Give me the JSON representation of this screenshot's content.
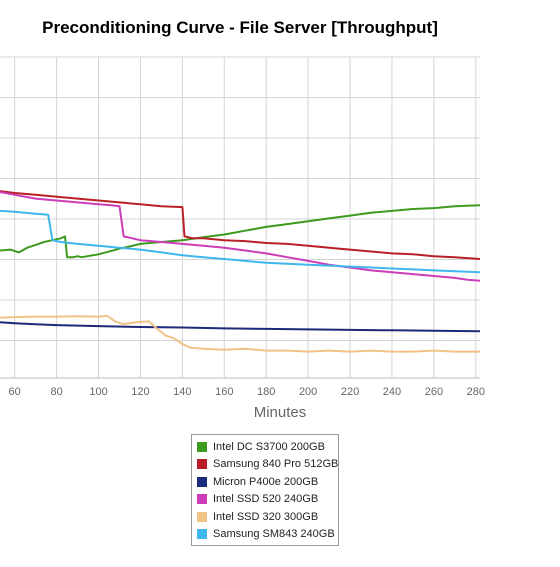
{
  "chart_data": {
    "type": "line",
    "title": "Preconditioning Curve - File Server [Throughput]",
    "xlabel": "Minutes",
    "ylabel": "",
    "xlim": [
      53,
      282
    ],
    "ylim": [
      0,
      340
    ],
    "xticks": [
      60,
      80,
      100,
      120,
      140,
      160,
      180,
      200,
      220,
      240,
      260,
      280
    ],
    "grid": true,
    "legend_placement": "bottom-center",
    "series": [
      {
        "name": "Intel DC S3700 200GB",
        "color": "#3d9a1f",
        "points": [
          [
            53,
            135
          ],
          [
            58,
            136
          ],
          [
            62,
            133
          ],
          [
            66,
            138
          ],
          [
            70,
            141
          ],
          [
            74,
            144
          ],
          [
            78,
            146
          ],
          [
            82,
            148
          ],
          [
            84,
            150
          ],
          [
            85,
            128
          ],
          [
            88,
            128
          ],
          [
            90,
            129
          ],
          [
            92,
            128
          ],
          [
            100,
            131
          ],
          [
            110,
            137
          ],
          [
            120,
            142
          ],
          [
            130,
            144
          ],
          [
            140,
            146
          ],
          [
            150,
            149
          ],
          [
            160,
            152
          ],
          [
            170,
            156
          ],
          [
            180,
            160
          ],
          [
            190,
            163
          ],
          [
            200,
            166
          ],
          [
            210,
            169
          ],
          [
            220,
            172
          ],
          [
            230,
            175
          ],
          [
            240,
            177
          ],
          [
            250,
            179
          ],
          [
            260,
            180
          ],
          [
            270,
            182
          ],
          [
            282,
            183
          ]
        ]
      },
      {
        "name": "Samsung 840 Pro 512GB",
        "color": "#b82025",
        "points": [
          [
            53,
            198
          ],
          [
            60,
            196
          ],
          [
            70,
            194
          ],
          [
            80,
            192
          ],
          [
            90,
            190
          ],
          [
            100,
            188
          ],
          [
            110,
            186
          ],
          [
            120,
            184
          ],
          [
            130,
            182
          ],
          [
            140,
            181
          ],
          [
            141,
            150
          ],
          [
            145,
            148
          ],
          [
            150,
            148
          ],
          [
            160,
            146
          ],
          [
            170,
            145
          ],
          [
            180,
            143
          ],
          [
            190,
            142
          ],
          [
            200,
            140
          ],
          [
            210,
            138
          ],
          [
            220,
            136
          ],
          [
            230,
            134
          ],
          [
            240,
            132
          ],
          [
            250,
            131
          ],
          [
            260,
            129
          ],
          [
            270,
            128
          ],
          [
            282,
            126
          ]
        ]
      },
      {
        "name": "Micron P400e 200GB",
        "color": "#1c2a7a",
        "points": [
          [
            53,
            59
          ],
          [
            60,
            58
          ],
          [
            70,
            57
          ],
          [
            80,
            56
          ],
          [
            90,
            55.5
          ],
          [
            100,
            55
          ],
          [
            120,
            54
          ],
          [
            140,
            53.5
          ],
          [
            160,
            52.5
          ],
          [
            180,
            52
          ],
          [
            200,
            51.5
          ],
          [
            220,
            51
          ],
          [
            240,
            50.5
          ],
          [
            260,
            50
          ],
          [
            282,
            49.5
          ]
        ]
      },
      {
        "name": "Intel SSD 520 240GB",
        "color": "#cc3db8",
        "points": [
          [
            53,
            197
          ],
          [
            60,
            194
          ],
          [
            70,
            190
          ],
          [
            80,
            188
          ],
          [
            90,
            186
          ],
          [
            100,
            184
          ],
          [
            106,
            183
          ],
          [
            110,
            182
          ],
          [
            112,
            150
          ],
          [
            120,
            146
          ],
          [
            130,
            144
          ],
          [
            140,
            142
          ],
          [
            150,
            140
          ],
          [
            160,
            138
          ],
          [
            170,
            135
          ],
          [
            180,
            132
          ],
          [
            190,
            128
          ],
          [
            200,
            124
          ],
          [
            210,
            120
          ],
          [
            220,
            117
          ],
          [
            230,
            114
          ],
          [
            240,
            112
          ],
          [
            250,
            110
          ],
          [
            260,
            108
          ],
          [
            270,
            106
          ],
          [
            276,
            104
          ],
          [
            282,
            103
          ]
        ]
      },
      {
        "name": "Intel SSD 320 300GB",
        "color": "#f0c286",
        "points": [
          [
            53,
            64
          ],
          [
            60,
            64.5
          ],
          [
            70,
            65
          ],
          [
            80,
            65
          ],
          [
            90,
            65.5
          ],
          [
            100,
            65
          ],
          [
            104,
            66
          ],
          [
            108,
            60
          ],
          [
            112,
            57
          ],
          [
            118,
            59
          ],
          [
            124,
            60
          ],
          [
            128,
            52
          ],
          [
            132,
            45
          ],
          [
            136,
            42
          ],
          [
            140,
            36
          ],
          [
            144,
            32
          ],
          [
            150,
            31
          ],
          [
            160,
            30
          ],
          [
            170,
            31
          ],
          [
            180,
            29
          ],
          [
            190,
            29
          ],
          [
            200,
            28
          ],
          [
            210,
            29
          ],
          [
            220,
            28
          ],
          [
            230,
            29
          ],
          [
            240,
            28
          ],
          [
            250,
            28
          ],
          [
            260,
            29
          ],
          [
            270,
            28
          ],
          [
            282,
            28
          ]
        ]
      },
      {
        "name": "Samsung SM843 240GB",
        "color": "#3fb7ec",
        "points": [
          [
            53,
            177
          ],
          [
            60,
            176
          ],
          [
            70,
            174
          ],
          [
            76,
            173
          ],
          [
            78,
            146
          ],
          [
            82,
            144
          ],
          [
            90,
            142
          ],
          [
            100,
            140
          ],
          [
            110,
            138
          ],
          [
            120,
            136
          ],
          [
            130,
            133
          ],
          [
            140,
            130
          ],
          [
            150,
            128
          ],
          [
            160,
            126
          ],
          [
            170,
            124
          ],
          [
            180,
            122
          ],
          [
            190,
            121
          ],
          [
            200,
            120
          ],
          [
            210,
            119
          ],
          [
            220,
            118
          ],
          [
            230,
            117
          ],
          [
            240,
            116
          ],
          [
            250,
            115
          ],
          [
            260,
            114
          ],
          [
            270,
            113
          ],
          [
            282,
            112
          ]
        ]
      }
    ]
  }
}
